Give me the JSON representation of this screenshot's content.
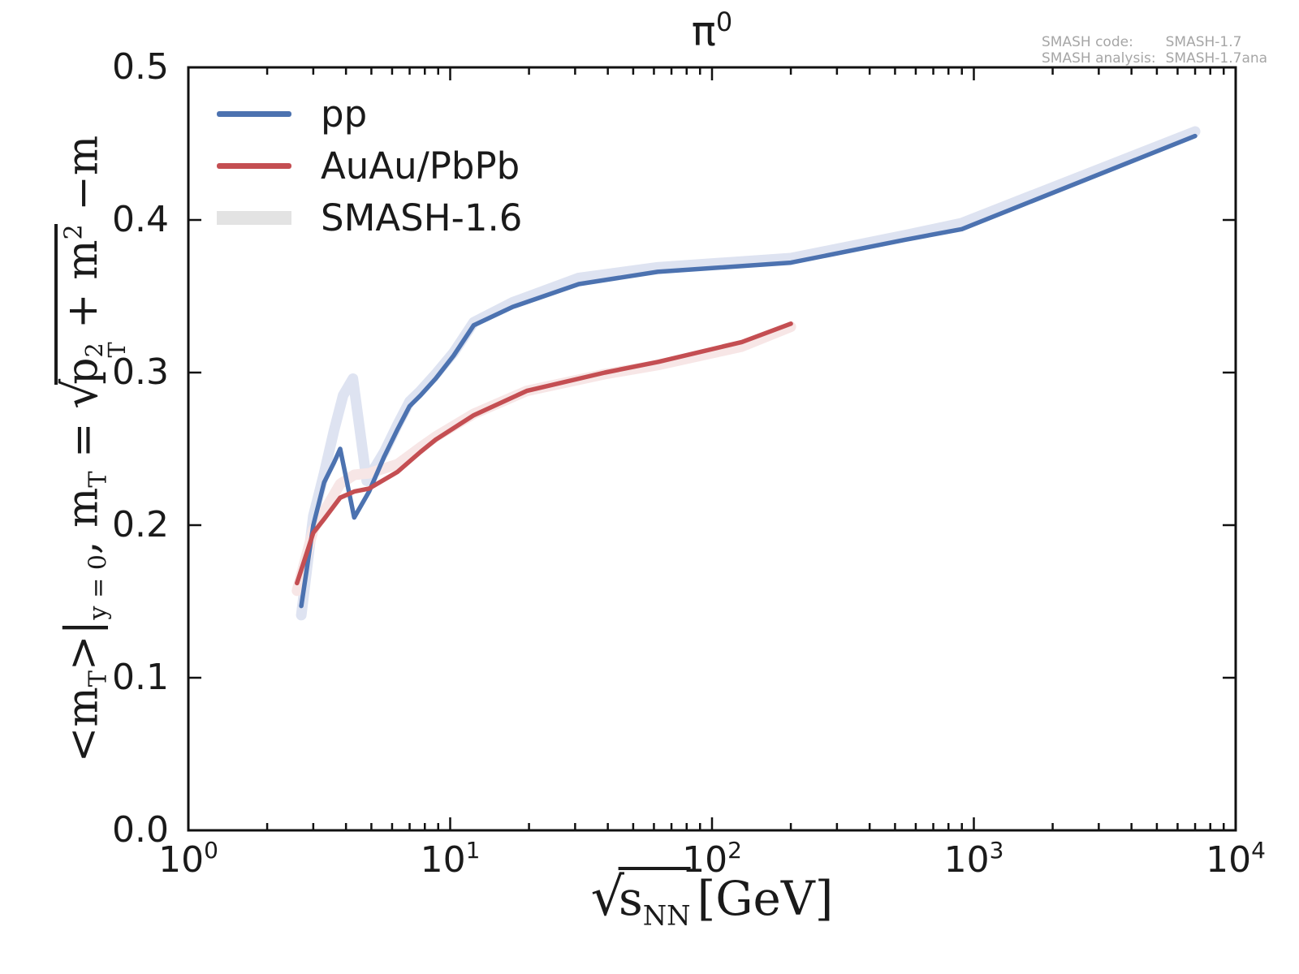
{
  "figure": {
    "title": {
      "symbol": "π",
      "superscript": "0"
    },
    "annotation": {
      "code_label": "SMASH code:",
      "code_value": "SMASH-1.7",
      "analysis_label": "SMASH analysis:",
      "analysis_value": "SMASH-1.7ana"
    },
    "legend": {
      "items": [
        {
          "label": "pp",
          "color": "#4C72B0",
          "swatch": "line"
        },
        {
          "label": "AuAu/PbPb",
          "color": "#C44E52",
          "swatch": "line"
        },
        {
          "label": "SMASH-1.6",
          "color": "#E3E3E3",
          "swatch": "band"
        }
      ]
    },
    "y_label": {
      "open_angle": "<m",
      "sub_T1": "T",
      "close_angle": ">",
      "bar": "|",
      "condition": "y = 0",
      "comma_m": ", m",
      "sub_T2": "T",
      "equals": " = ",
      "radical": "√",
      "p": "p",
      "p_sup": "2",
      "p_sub": "T",
      "plus_m": " + m",
      "m_sup": "2",
      "minus_m": " −m"
    },
    "x_label": {
      "radical": "√",
      "s": "s",
      "sub": "NN",
      "unit": "[GeV]"
    }
  },
  "axes": {
    "x": {
      "scale": "log",
      "ticks": [
        {
          "base": "10",
          "exp": "0"
        },
        {
          "base": "10",
          "exp": "1"
        },
        {
          "base": "10",
          "exp": "2"
        },
        {
          "base": "10",
          "exp": "3"
        },
        {
          "base": "10",
          "exp": "4"
        }
      ]
    },
    "y": {
      "ticks": [
        "0.0",
        "0.1",
        "0.2",
        "0.3",
        "0.4",
        "0.5"
      ]
    }
  },
  "chart_data": {
    "type": "line",
    "title": "π⁰",
    "xlabel": "√s_NN [GeV]",
    "ylabel": "<m_T>|_(y=0), m_T = √(p_T² + m²) − m  [GeV]",
    "xscale": "log",
    "xlim": [
      1,
      10000
    ],
    "ylim": [
      0.0,
      0.5
    ],
    "grid": false,
    "legend_position": "upper left",
    "series": [
      {
        "name": "SMASH-1.6 pp band",
        "color": "#DEE3F1",
        "role": "band",
        "line_width": 13,
        "x": [
          2.7,
          3.0,
          3.3,
          3.6,
          3.9,
          4.25,
          4.8,
          5.6,
          6.3,
          7.0,
          7.7,
          8.8,
          10.3,
          12.3,
          17.3,
          31,
          62,
          200,
          546,
          900,
          7000
        ],
        "y": [
          0.141,
          0.206,
          0.234,
          0.262,
          0.285,
          0.296,
          0.229,
          0.248,
          0.266,
          0.281,
          0.288,
          0.299,
          0.313,
          0.333,
          0.346,
          0.362,
          0.369,
          0.375,
          0.39,
          0.398,
          0.458
        ]
      },
      {
        "name": "SMASH-1.6 AuAu/PbPb band",
        "color": "#F7E6E6",
        "role": "band",
        "line_width": 13,
        "x": [
          2.6,
          3.0,
          3.3,
          3.8,
          4.3,
          4.9,
          6.3,
          7.7,
          8.8,
          12.3,
          19.6,
          39,
          62.4,
          130,
          200
        ],
        "y": [
          0.157,
          0.197,
          0.209,
          0.227,
          0.233,
          0.234,
          0.24,
          0.251,
          0.258,
          0.273,
          0.288,
          0.299,
          0.305,
          0.317,
          0.33
        ]
      },
      {
        "name": "pp",
        "color": "#4C72B0",
        "role": "line",
        "line_width": 5.5,
        "x": [
          2.7,
          3.0,
          3.3,
          3.6,
          3.8,
          4.3,
          4.9,
          5.6,
          6.3,
          7.0,
          7.7,
          8.8,
          10.3,
          12.3,
          17.3,
          31,
          62,
          200,
          546,
          900,
          7000
        ],
        "y": [
          0.147,
          0.2,
          0.228,
          0.241,
          0.25,
          0.205,
          0.222,
          0.245,
          0.263,
          0.278,
          0.285,
          0.296,
          0.311,
          0.331,
          0.343,
          0.358,
          0.366,
          0.372,
          0.387,
          0.394,
          0.455
        ]
      },
      {
        "name": "AuAu/PbPb",
        "color": "#C44E52",
        "role": "line",
        "line_width": 5.5,
        "x": [
          2.6,
          3.0,
          3.3,
          3.8,
          4.3,
          4.9,
          6.3,
          7.7,
          8.8,
          12.3,
          19.6,
          39,
          62.4,
          130,
          200
        ],
        "y": [
          0.162,
          0.195,
          0.204,
          0.218,
          0.222,
          0.224,
          0.235,
          0.248,
          0.256,
          0.272,
          0.288,
          0.3,
          0.307,
          0.32,
          0.332
        ]
      }
    ]
  }
}
